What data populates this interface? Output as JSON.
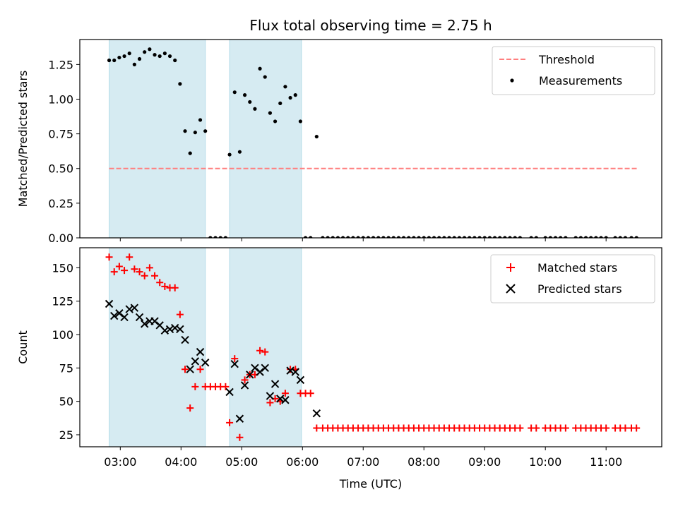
{
  "title": "Flux total observing time = 2.75 h",
  "colors": {
    "shade": "#add8e6",
    "threshold": "#ff7f7f",
    "measurement": "#000000",
    "matched": "#ff0000",
    "predicted": "#000000"
  },
  "chart_data": [
    {
      "type": "scatter",
      "panel": "top",
      "ylabel": "Matched/Predicted stars",
      "ylim": [
        0,
        1.43
      ],
      "yticks": [
        0.0,
        0.25,
        0.5,
        0.75,
        1.0,
        1.25
      ],
      "ytick_labels": [
        "0.00",
        "0.25",
        "0.50",
        "0.75",
        "1.00",
        "1.25"
      ],
      "xlim": [
        "02:20",
        "11:55"
      ],
      "shaded_intervals": [
        [
          "02:49",
          "04:24"
        ],
        [
          "04:48",
          "05:59"
        ]
      ],
      "legend": {
        "position": "top-right",
        "entries": [
          "Threshold",
          "Measurements"
        ]
      },
      "threshold": {
        "name": "Threshold",
        "value": 0.5,
        "x": [
          "02:49",
          "11:31"
        ],
        "style": "dashed"
      },
      "series": [
        {
          "name": "Measurements",
          "marker": "dot",
          "points": [
            [
              "02:49",
              1.28
            ],
            [
              "02:54",
              1.28
            ],
            [
              "02:59",
              1.3
            ],
            [
              "03:04",
              1.31
            ],
            [
              "03:09",
              1.33
            ],
            [
              "03:14",
              1.25
            ],
            [
              "03:19",
              1.29
            ],
            [
              "03:24",
              1.34
            ],
            [
              "03:29",
              1.36
            ],
            [
              "03:34",
              1.32
            ],
            [
              "03:39",
              1.31
            ],
            [
              "03:44",
              1.33
            ],
            [
              "03:49",
              1.31
            ],
            [
              "03:54",
              1.28
            ],
            [
              "03:59",
              1.11
            ],
            [
              "04:04",
              0.77
            ],
            [
              "04:09",
              0.61
            ],
            [
              "04:14",
              0.76
            ],
            [
              "04:19",
              0.85
            ],
            [
              "04:24",
              0.77
            ],
            [
              "04:29",
              0
            ],
            [
              "04:34",
              0
            ],
            [
              "04:39",
              0
            ],
            [
              "04:44",
              0
            ],
            [
              "04:48",
              0.6
            ],
            [
              "04:53",
              1.05
            ],
            [
              "04:58",
              0.62
            ],
            [
              "05:03",
              1.03
            ],
            [
              "05:08",
              0.98
            ],
            [
              "05:13",
              0.93
            ],
            [
              "05:18",
              1.22
            ],
            [
              "05:23",
              1.16
            ],
            [
              "05:28",
              0.9
            ],
            [
              "05:33",
              0.84
            ],
            [
              "05:38",
              0.97
            ],
            [
              "05:43",
              1.09
            ],
            [
              "05:48",
              1.01
            ],
            [
              "05:53",
              1.03
            ],
            [
              "05:58",
              0.84
            ],
            [
              "06:03",
              0
            ],
            [
              "06:08",
              0
            ],
            [
              "06:14",
              0.73
            ],
            [
              "06:20",
              0
            ],
            [
              "06:25",
              0
            ],
            [
              "06:30",
              0
            ],
            [
              "06:35",
              0
            ],
            [
              "06:40",
              0
            ],
            [
              "06:45",
              0
            ],
            [
              "06:50",
              0
            ],
            [
              "06:55",
              0
            ],
            [
              "07:00",
              0
            ],
            [
              "07:05",
              0
            ],
            [
              "07:10",
              0
            ],
            [
              "07:15",
              0
            ],
            [
              "07:20",
              0
            ],
            [
              "07:25",
              0
            ],
            [
              "07:30",
              0
            ],
            [
              "07:35",
              0
            ],
            [
              "07:40",
              0
            ],
            [
              "07:45",
              0
            ],
            [
              "07:50",
              0
            ],
            [
              "07:55",
              0
            ],
            [
              "08:00",
              0
            ],
            [
              "08:05",
              0
            ],
            [
              "08:10",
              0
            ],
            [
              "08:15",
              0
            ],
            [
              "08:20",
              0
            ],
            [
              "08:25",
              0
            ],
            [
              "08:30",
              0
            ],
            [
              "08:35",
              0
            ],
            [
              "08:40",
              0
            ],
            [
              "08:45",
              0
            ],
            [
              "08:50",
              0
            ],
            [
              "08:55",
              0
            ],
            [
              "09:00",
              0
            ],
            [
              "09:05",
              0
            ],
            [
              "09:10",
              0
            ],
            [
              "09:15",
              0
            ],
            [
              "09:20",
              0
            ],
            [
              "09:25",
              0
            ],
            [
              "09:30",
              0
            ],
            [
              "09:35",
              0
            ],
            [
              "09:46",
              0
            ],
            [
              "09:51",
              0
            ],
            [
              "10:00",
              0
            ],
            [
              "10:05",
              0
            ],
            [
              "10:10",
              0
            ],
            [
              "10:15",
              0
            ],
            [
              "10:20",
              0
            ],
            [
              "10:30",
              0
            ],
            [
              "10:35",
              0
            ],
            [
              "10:40",
              0
            ],
            [
              "10:45",
              0
            ],
            [
              "10:50",
              0
            ],
            [
              "10:55",
              0
            ],
            [
              "11:00",
              0
            ],
            [
              "11:09",
              0
            ],
            [
              "11:14",
              0
            ],
            [
              "11:19",
              0
            ],
            [
              "11:25",
              0
            ],
            [
              "11:30",
              0
            ]
          ]
        }
      ]
    },
    {
      "type": "scatter",
      "panel": "bottom",
      "ylabel": "Count",
      "xlabel": "Time (UTC)",
      "ylim": [
        16,
        165
      ],
      "yticks": [
        25,
        50,
        75,
        100,
        125,
        150
      ],
      "ytick_labels": [
        "25",
        "50",
        "75",
        "100",
        "125",
        "150"
      ],
      "xlim": [
        "02:20",
        "11:55"
      ],
      "xticks": [
        "03:00",
        "04:00",
        "05:00",
        "06:00",
        "07:00",
        "08:00",
        "09:00",
        "10:00",
        "11:00"
      ],
      "xtick_labels": [
        "03:00",
        "04:00",
        "05:00",
        "06:00",
        "07:00",
        "08:00",
        "09:00",
        "10:00",
        "11:00"
      ],
      "shaded_intervals": [
        [
          "02:49",
          "04:24"
        ],
        [
          "04:48",
          "05:59"
        ]
      ],
      "legend": {
        "position": "top-right",
        "entries": [
          "Matched stars",
          "Predicted stars"
        ]
      },
      "series": [
        {
          "name": "Matched stars",
          "marker": "plus",
          "points": [
            [
              "02:49",
              158
            ],
            [
              "02:54",
              147
            ],
            [
              "02:59",
              151
            ],
            [
              "03:04",
              148
            ],
            [
              "03:09",
              158
            ],
            [
              "03:14",
              149
            ],
            [
              "03:19",
              147
            ],
            [
              "03:24",
              144
            ],
            [
              "03:29",
              150
            ],
            [
              "03:34",
              144
            ],
            [
              "03:39",
              139
            ],
            [
              "03:44",
              136
            ],
            [
              "03:49",
              135
            ],
            [
              "03:54",
              135
            ],
            [
              "03:59",
              115
            ],
            [
              "04:04",
              74
            ],
            [
              "04:09",
              45
            ],
            [
              "04:14",
              61
            ],
            [
              "04:19",
              74
            ],
            [
              "04:24",
              61
            ],
            [
              "04:29",
              61
            ],
            [
              "04:34",
              61
            ],
            [
              "04:39",
              61
            ],
            [
              "04:44",
              61
            ],
            [
              "04:48",
              34
            ],
            [
              "04:53",
              82
            ],
            [
              "04:58",
              23
            ],
            [
              "05:03",
              66
            ],
            [
              "05:08",
              70
            ],
            [
              "05:13",
              70
            ],
            [
              "05:18",
              88
            ],
            [
              "05:23",
              87
            ],
            [
              "05:28",
              49
            ],
            [
              "05:33",
              52
            ],
            [
              "05:38",
              50
            ],
            [
              "05:43",
              56
            ],
            [
              "05:48",
              74
            ],
            [
              "05:53",
              74
            ],
            [
              "05:58",
              56
            ],
            [
              "06:03",
              56
            ],
            [
              "06:08",
              56
            ],
            [
              "06:14",
              30
            ],
            [
              "06:20",
              30
            ],
            [
              "06:25",
              30
            ],
            [
              "06:30",
              30
            ],
            [
              "06:35",
              30
            ],
            [
              "06:40",
              30
            ],
            [
              "06:45",
              30
            ],
            [
              "06:50",
              30
            ],
            [
              "06:55",
              30
            ],
            [
              "07:00",
              30
            ],
            [
              "07:05",
              30
            ],
            [
              "07:10",
              30
            ],
            [
              "07:15",
              30
            ],
            [
              "07:20",
              30
            ],
            [
              "07:25",
              30
            ],
            [
              "07:30",
              30
            ],
            [
              "07:35",
              30
            ],
            [
              "07:40",
              30
            ],
            [
              "07:45",
              30
            ],
            [
              "07:50",
              30
            ],
            [
              "07:55",
              30
            ],
            [
              "08:00",
              30
            ],
            [
              "08:05",
              30
            ],
            [
              "08:10",
              30
            ],
            [
              "08:15",
              30
            ],
            [
              "08:20",
              30
            ],
            [
              "08:25",
              30
            ],
            [
              "08:30",
              30
            ],
            [
              "08:35",
              30
            ],
            [
              "08:40",
              30
            ],
            [
              "08:45",
              30
            ],
            [
              "08:50",
              30
            ],
            [
              "08:55",
              30
            ],
            [
              "09:00",
              30
            ],
            [
              "09:05",
              30
            ],
            [
              "09:10",
              30
            ],
            [
              "09:15",
              30
            ],
            [
              "09:20",
              30
            ],
            [
              "09:25",
              30
            ],
            [
              "09:30",
              30
            ],
            [
              "09:35",
              30
            ],
            [
              "09:46",
              30
            ],
            [
              "09:51",
              30
            ],
            [
              "10:00",
              30
            ],
            [
              "10:05",
              30
            ],
            [
              "10:10",
              30
            ],
            [
              "10:15",
              30
            ],
            [
              "10:20",
              30
            ],
            [
              "10:30",
              30
            ],
            [
              "10:35",
              30
            ],
            [
              "10:40",
              30
            ],
            [
              "10:45",
              30
            ],
            [
              "10:50",
              30
            ],
            [
              "10:55",
              30
            ],
            [
              "11:00",
              30
            ],
            [
              "11:09",
              30
            ],
            [
              "11:14",
              30
            ],
            [
              "11:19",
              30
            ],
            [
              "11:25",
              30
            ],
            [
              "11:30",
              30
            ]
          ]
        },
        {
          "name": "Predicted stars",
          "marker": "x",
          "points": [
            [
              "02:49",
              123
            ],
            [
              "02:54",
              114
            ],
            [
              "02:59",
              116
            ],
            [
              "03:04",
              113
            ],
            [
              "03:09",
              119
            ],
            [
              "03:14",
              120
            ],
            [
              "03:19",
              113
            ],
            [
              "03:24",
              108
            ],
            [
              "03:29",
              110
            ],
            [
              "03:34",
              110
            ],
            [
              "03:39",
              107
            ],
            [
              "03:44",
              103
            ],
            [
              "03:49",
              104
            ],
            [
              "03:54",
              105
            ],
            [
              "03:59",
              104
            ],
            [
              "04:04",
              96
            ],
            [
              "04:09",
              74
            ],
            [
              "04:14",
              80
            ],
            [
              "04:19",
              87
            ],
            [
              "04:24",
              79
            ],
            [
              "04:48",
              57
            ],
            [
              "04:53",
              78
            ],
            [
              "04:58",
              37
            ],
            [
              "05:03",
              62
            ],
            [
              "05:08",
              70
            ],
            [
              "05:13",
              75
            ],
            [
              "05:18",
              72
            ],
            [
              "05:23",
              75
            ],
            [
              "05:28",
              54
            ],
            [
              "05:33",
              63
            ],
            [
              "05:38",
              52
            ],
            [
              "05:43",
              51
            ],
            [
              "05:48",
              73
            ],
            [
              "05:53",
              72
            ],
            [
              "05:58",
              66
            ],
            [
              "06:14",
              41
            ]
          ]
        }
      ]
    }
  ]
}
